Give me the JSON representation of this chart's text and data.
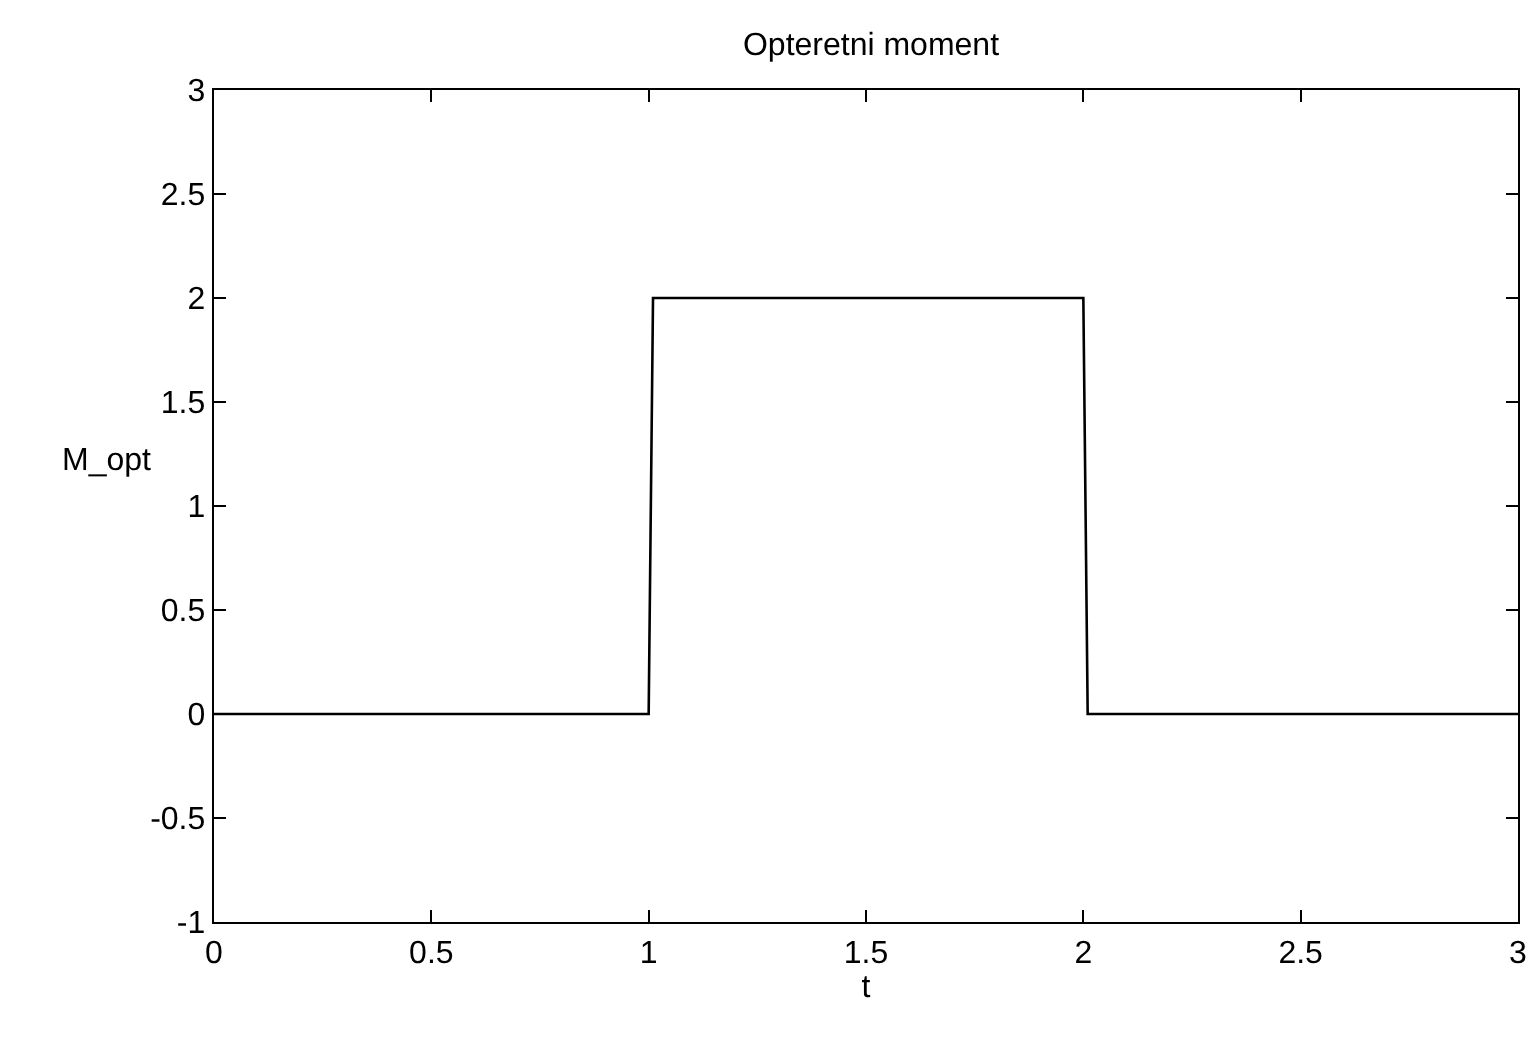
{
  "chart_data": {
    "type": "line",
    "title": "Opteretni moment",
    "xlabel": "t",
    "ylabel": "M_opt",
    "x": [
      0,
      1,
      1.01,
      2,
      2.01,
      3
    ],
    "series": [
      {
        "color": "#000000",
        "values": [
          0,
          0,
          2,
          2,
          0,
          0
        ]
      }
    ],
    "xlim": [
      0,
      3
    ],
    "xticks": [
      0,
      0.5,
      1,
      1.5,
      2,
      2.5,
      3
    ],
    "ylim": [
      -1,
      3
    ],
    "yticks": [
      -1,
      -0.5,
      0,
      0.5,
      1,
      1.5,
      2,
      2.5,
      3
    ],
    "marker": "none",
    "line_style": "solid"
  }
}
